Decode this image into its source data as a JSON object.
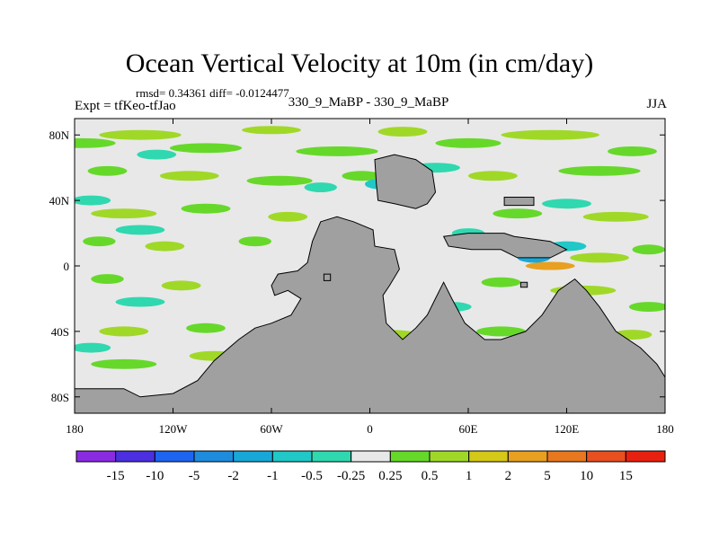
{
  "chart_data": {
    "type": "heatmap",
    "title": "Ocean Vertical Velocity at 10m (in cm/day)",
    "stats_label": "rmsd= 0.34361 diff= -0.0124477",
    "left_label": "Expt = tfKeo-tfJao",
    "center_label": "330_9_MaBP - 330_9_MaBP",
    "right_label": "JJA",
    "x_axis": {
      "range": [
        -180,
        180
      ],
      "ticks": [
        -180,
        -120,
        -60,
        0,
        60,
        120,
        180
      ],
      "tick_labels": [
        "180",
        "120W",
        "60W",
        "0",
        "60E",
        "120E",
        "180"
      ]
    },
    "y_axis": {
      "range": [
        -90,
        90
      ],
      "ticks": [
        80,
        40,
        0,
        -40,
        -80
      ],
      "tick_labels": [
        "80N",
        "40N",
        "0",
        "40S",
        "80S"
      ]
    },
    "colorbar": {
      "labels": [
        "-15",
        "-10",
        "-5",
        "-2",
        "-1",
        "-0.5",
        "-0.25",
        "0.25",
        "0.5",
        "1",
        "2",
        "5",
        "10",
        "15"
      ],
      "colors": [
        "#8a2be2",
        "#4b2fe0",
        "#1e64f0",
        "#1e8cdc",
        "#18a8d8",
        "#20c8c8",
        "#30d8b0",
        "#e8e8e8",
        "#66d82a",
        "#a0d828",
        "#d4c818",
        "#e8a020",
        "#e87820",
        "#e85020",
        "#e82010"
      ]
    },
    "land_color": "#a0a0a0",
    "background_color": "#e8e8e8",
    "positive_blobs": [
      {
        "lon": -175,
        "lat": 75,
        "rx": 20,
        "ry": 3,
        "level": "0.5"
      },
      {
        "lon": -140,
        "lat": 80,
        "rx": 25,
        "ry": 3,
        "level": "1"
      },
      {
        "lon": -100,
        "lat": 72,
        "rx": 22,
        "ry": 3,
        "level": "0.5"
      },
      {
        "lon": -60,
        "lat": 83,
        "rx": 18,
        "ry": 2.5,
        "level": "1"
      },
      {
        "lon": -20,
        "lat": 70,
        "rx": 25,
        "ry": 3,
        "level": "0.5"
      },
      {
        "lon": 20,
        "lat": 82,
        "rx": 15,
        "ry": 3,
        "level": "1"
      },
      {
        "lon": 60,
        "lat": 75,
        "rx": 20,
        "ry": 3,
        "level": "0.5"
      },
      {
        "lon": 110,
        "lat": 80,
        "rx": 30,
        "ry": 3,
        "level": "1"
      },
      {
        "lon": 160,
        "lat": 70,
        "rx": 15,
        "ry": 3,
        "level": "0.5"
      },
      {
        "lon": -160,
        "lat": 58,
        "rx": 12,
        "ry": 3,
        "level": "0.5"
      },
      {
        "lon": -110,
        "lat": 55,
        "rx": 18,
        "ry": 3,
        "level": "1"
      },
      {
        "lon": -55,
        "lat": 52,
        "rx": 20,
        "ry": 3,
        "level": "0.5"
      },
      {
        "lon": -5,
        "lat": 55,
        "rx": 12,
        "ry": 3,
        "level": "0.5"
      },
      {
        "lon": 75,
        "lat": 55,
        "rx": 15,
        "ry": 3,
        "level": "1"
      },
      {
        "lon": 140,
        "lat": 58,
        "rx": 25,
        "ry": 3,
        "level": "0.5"
      },
      {
        "lon": -150,
        "lat": 32,
        "rx": 20,
        "ry": 3,
        "level": "1"
      },
      {
        "lon": -100,
        "lat": 35,
        "rx": 15,
        "ry": 3,
        "level": "0.5"
      },
      {
        "lon": -50,
        "lat": 30,
        "rx": 12,
        "ry": 3,
        "level": "1"
      },
      {
        "lon": 90,
        "lat": 32,
        "rx": 15,
        "ry": 3,
        "level": "0.5"
      },
      {
        "lon": 150,
        "lat": 30,
        "rx": 20,
        "ry": 3,
        "level": "1"
      },
      {
        "lon": -165,
        "lat": 15,
        "rx": 10,
        "ry": 3,
        "level": "0.5"
      },
      {
        "lon": -125,
        "lat": 12,
        "rx": 12,
        "ry": 3,
        "level": "1"
      },
      {
        "lon": -70,
        "lat": 15,
        "rx": 10,
        "ry": 3,
        "level": "0.5"
      },
      {
        "lon": 110,
        "lat": 0,
        "rx": 15,
        "ry": 2.5,
        "level": "5"
      },
      {
        "lon": 140,
        "lat": 5,
        "rx": 18,
        "ry": 3,
        "level": "1"
      },
      {
        "lon": 170,
        "lat": 10,
        "rx": 10,
        "ry": 3,
        "level": "0.5"
      },
      {
        "lon": -160,
        "lat": -8,
        "rx": 10,
        "ry": 3,
        "level": "0.5"
      },
      {
        "lon": -115,
        "lat": -12,
        "rx": 12,
        "ry": 3,
        "level": "1"
      },
      {
        "lon": 80,
        "lat": -10,
        "rx": 12,
        "ry": 3,
        "level": "0.5"
      },
      {
        "lon": 130,
        "lat": -15,
        "rx": 20,
        "ry": 3,
        "level": "1"
      },
      {
        "lon": 170,
        "lat": -25,
        "rx": 12,
        "ry": 3,
        "level": "0.5"
      },
      {
        "lon": -150,
        "lat": -40,
        "rx": 15,
        "ry": 3,
        "level": "1"
      },
      {
        "lon": -100,
        "lat": -38,
        "rx": 12,
        "ry": 3,
        "level": "0.5"
      },
      {
        "lon": 10,
        "lat": -42,
        "rx": 20,
        "ry": 3,
        "level": "1"
      },
      {
        "lon": 80,
        "lat": -40,
        "rx": 15,
        "ry": 3,
        "level": "0.5"
      },
      {
        "lon": 160,
        "lat": -42,
        "rx": 12,
        "ry": 3,
        "level": "1"
      },
      {
        "lon": -150,
        "lat": -60,
        "rx": 20,
        "ry": 3,
        "level": "0.5"
      },
      {
        "lon": -95,
        "lat": -55,
        "rx": 15,
        "ry": 3,
        "level": "1"
      },
      {
        "lon": -80,
        "lat": -80,
        "rx": 10,
        "ry": 2,
        "level": "0.5"
      }
    ],
    "negative_blobs": [
      {
        "lon": -130,
        "lat": 68,
        "rx": 12,
        "ry": 3,
        "level": "-0.5"
      },
      {
        "lon": -30,
        "lat": 48,
        "rx": 10,
        "ry": 3,
        "level": "-0.5"
      },
      {
        "lon": 40,
        "lat": 60,
        "rx": 15,
        "ry": 3,
        "level": "-0.5"
      },
      {
        "lon": 5,
        "lat": 50,
        "rx": 8,
        "ry": 3,
        "level": "-1"
      },
      {
        "lon": -170,
        "lat": 40,
        "rx": 12,
        "ry": 3,
        "level": "-0.5"
      },
      {
        "lon": 120,
        "lat": 38,
        "rx": 15,
        "ry": 3,
        "level": "-0.5"
      },
      {
        "lon": -140,
        "lat": 22,
        "rx": 15,
        "ry": 3,
        "level": "-0.5"
      },
      {
        "lon": 60,
        "lat": 20,
        "rx": 10,
        "ry": 3,
        "level": "-0.5"
      },
      {
        "lon": 100,
        "lat": 5,
        "rx": 10,
        "ry": 3,
        "level": "-2"
      },
      {
        "lon": 120,
        "lat": 12,
        "rx": 12,
        "ry": 3,
        "level": "-1"
      },
      {
        "lon": -140,
        "lat": -22,
        "rx": 15,
        "ry": 3,
        "level": "-0.5"
      },
      {
        "lon": 50,
        "lat": -25,
        "rx": 12,
        "ry": 3,
        "level": "-0.5"
      },
      {
        "lon": 120,
        "lat": -28,
        "rx": 10,
        "ry": 3,
        "level": "-0.5"
      },
      {
        "lon": -170,
        "lat": -50,
        "rx": 12,
        "ry": 3,
        "level": "-0.5"
      },
      {
        "lon": 50,
        "lat": -55,
        "rx": 12,
        "ry": 3,
        "level": "-0.5"
      }
    ],
    "land_polygons": [
      {
        "name": "western-continent",
        "points": [
          [
            -30,
            27
          ],
          [
            -20,
            30
          ],
          [
            -10,
            27
          ],
          [
            2,
            22
          ],
          [
            3,
            12
          ],
          [
            15,
            10
          ],
          [
            18,
            -2
          ],
          [
            12,
            -12
          ],
          [
            8,
            -18
          ],
          [
            10,
            -35
          ],
          [
            20,
            -45
          ],
          [
            28,
            -38
          ],
          [
            35,
            -30
          ],
          [
            40,
            -20
          ],
          [
            45,
            -10
          ],
          [
            50,
            -20
          ],
          [
            58,
            -35
          ],
          [
            70,
            -45
          ],
          [
            80,
            -45
          ],
          [
            95,
            -40
          ],
          [
            105,
            -30
          ],
          [
            115,
            -15
          ],
          [
            125,
            -8
          ],
          [
            132,
            -15
          ],
          [
            140,
            -25
          ],
          [
            150,
            -40
          ],
          [
            165,
            -50
          ],
          [
            175,
            -60
          ],
          [
            180,
            -68
          ],
          [
            180,
            -90
          ],
          [
            -180,
            -90
          ],
          [
            -180,
            -75
          ],
          [
            -150,
            -75
          ],
          [
            -140,
            -80
          ],
          [
            -120,
            -78
          ],
          [
            -105,
            -70
          ],
          [
            -95,
            -58
          ],
          [
            -80,
            -45
          ],
          [
            -70,
            -38
          ],
          [
            -60,
            -35
          ],
          [
            -48,
            -30
          ],
          [
            -42,
            -20
          ],
          [
            -50,
            -15
          ],
          [
            -58,
            -18
          ],
          [
            -60,
            -12
          ],
          [
            -56,
            -5
          ],
          [
            -44,
            -3
          ],
          [
            -38,
            2
          ],
          [
            -35,
            15
          ]
        ]
      },
      {
        "name": "northern-block",
        "points": [
          [
            3,
            65
          ],
          [
            15,
            68
          ],
          [
            28,
            65
          ],
          [
            38,
            58
          ],
          [
            40,
            45
          ],
          [
            35,
            38
          ],
          [
            28,
            35
          ],
          [
            15,
            38
          ],
          [
            5,
            40
          ],
          [
            4,
            50
          ]
        ]
      },
      {
        "name": "northern-island",
        "points": [
          [
            45,
            18
          ],
          [
            60,
            20
          ],
          [
            82,
            20
          ],
          [
            88,
            18
          ],
          [
            110,
            15
          ],
          [
            120,
            10
          ],
          [
            110,
            5
          ],
          [
            90,
            5
          ],
          [
            80,
            10
          ],
          [
            62,
            10
          ],
          [
            48,
            12
          ]
        ]
      },
      {
        "name": "eastern-bar",
        "points": [
          [
            82,
            42
          ],
          [
            100,
            42
          ],
          [
            100,
            37
          ],
          [
            82,
            37
          ]
        ]
      },
      {
        "name": "small-island",
        "points": [
          [
            -28,
            -5
          ],
          [
            -24,
            -5
          ],
          [
            -24,
            -9
          ],
          [
            -28,
            -9
          ]
        ]
      },
      {
        "name": "tiny-island",
        "points": [
          [
            92,
            -10
          ],
          [
            96,
            -10
          ],
          [
            96,
            -13
          ],
          [
            92,
            -13
          ]
        ]
      }
    ]
  }
}
